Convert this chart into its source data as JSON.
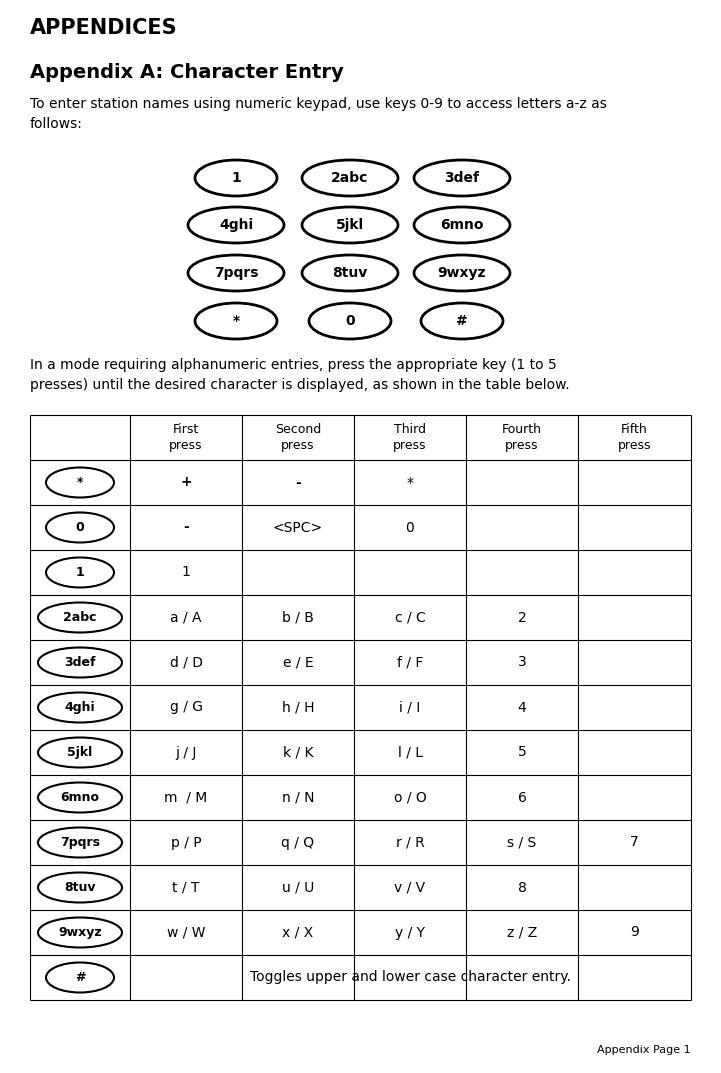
{
  "title_appendices": "APPENDICES",
  "title_appendix_a": "Appendix A: Character Entry",
  "intro_text": "To enter station names using numeric keypad, use keys 0-9 to access letters a-z as\nfollows:",
  "keypad_rows": [
    [
      "1",
      "2abc",
      "3def"
    ],
    [
      "4ghi",
      "5jkl",
      "6mno"
    ],
    [
      "7pqrs",
      "8tuv",
      "9wxyz"
    ],
    [
      "*",
      "0",
      "#"
    ]
  ],
  "mode_text": "In a mode requiring alphanumeric entries, press the appropriate key (1 to 5\npresses) until the desired character is displayed, as shown in the table below.",
  "table_headers": [
    "",
    "First\npress",
    "Second\npress",
    "Third\npress",
    "Fourth\npress",
    "Fifth\npress"
  ],
  "table_rows": [
    {
      "key": "*",
      "cells": [
        "+",
        "-",
        "*",
        "",
        ""
      ]
    },
    {
      "key": "0",
      "cells": [
        "-",
        "<SPC>",
        "0",
        "",
        ""
      ]
    },
    {
      "key": "1",
      "cells": [
        "1",
        "",
        "",
        "",
        ""
      ]
    },
    {
      "key": "2abc",
      "cells": [
        "a / A",
        "b / B",
        "c / C",
        "2",
        ""
      ]
    },
    {
      "key": "3def",
      "cells": [
        "d / D",
        "e / E",
        "f / F",
        "3",
        ""
      ]
    },
    {
      "key": "4ghi",
      "cells": [
        "g / G",
        "h / H",
        "i / I",
        "4",
        ""
      ]
    },
    {
      "key": "5jkl",
      "cells": [
        "j / J",
        "k / K",
        "l / L",
        "5",
        ""
      ]
    },
    {
      "key": "6mno",
      "cells": [
        "m  / M",
        "n / N",
        "o / O",
        "6",
        ""
      ]
    },
    {
      "key": "7pqrs",
      "cells": [
        "p / P",
        "q / Q",
        "r / R",
        "s / S",
        "7"
      ]
    },
    {
      "key": "8tuv",
      "cells": [
        "t / T",
        "u / U",
        "v / V",
        "8",
        ""
      ]
    },
    {
      "key": "9wxyz",
      "cells": [
        "w / W",
        "x / X",
        "y / Y",
        "z / Z",
        "9"
      ]
    },
    {
      "key": "#",
      "cells": [
        "Toggles upper and lower case character entry.",
        "",
        "",
        "",
        ""
      ],
      "span": true
    }
  ],
  "footer_text": "Appendix Page 1",
  "bg_color": "#ffffff",
  "text_color": "#000000"
}
